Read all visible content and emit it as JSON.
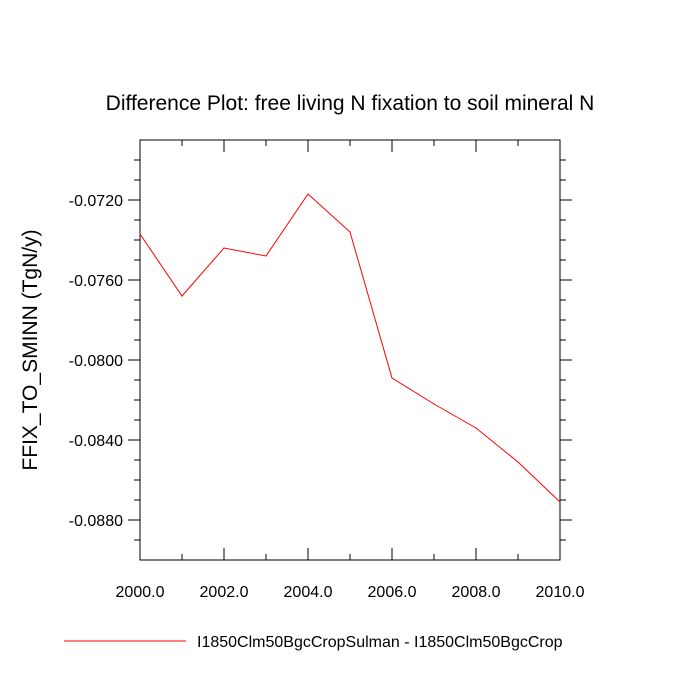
{
  "chart_data": {
    "type": "line",
    "title": "Difference Plot: free living N fixation to soil mineral N",
    "xlabel": "",
    "ylabel": "FFIX_TO_SMINN  (TgN/y)",
    "xlim": [
      2000,
      2010
    ],
    "ylim": [
      -0.09,
      -0.069
    ],
    "x_ticks": [
      2000,
      2002,
      2004,
      2006,
      2008,
      2010
    ],
    "x_tick_labels": [
      "2000.0",
      "2002.0",
      "2004.0",
      "2006.0",
      "2008.0",
      "2010.0"
    ],
    "y_ticks": [
      -0.072,
      -0.076,
      -0.08,
      -0.084,
      -0.088
    ],
    "y_tick_labels": [
      "-0.0720",
      "-0.0760",
      "-0.0800",
      "-0.0840",
      "-0.0880"
    ],
    "grid": false,
    "legend_position": "bottom",
    "series": [
      {
        "name": "I1850Clm50BgcCropSulman - I1850Clm50BgcCrop",
        "color": "#ff0000",
        "x": [
          2000,
          2001,
          2002,
          2003,
          2004,
          2005,
          2006,
          2007,
          2008,
          2009,
          2010
        ],
        "y": [
          -0.0737,
          -0.0768,
          -0.0744,
          -0.0748,
          -0.0717,
          -0.0736,
          -0.0809,
          -0.0822,
          -0.0834,
          -0.0851,
          -0.0871
        ]
      }
    ]
  }
}
